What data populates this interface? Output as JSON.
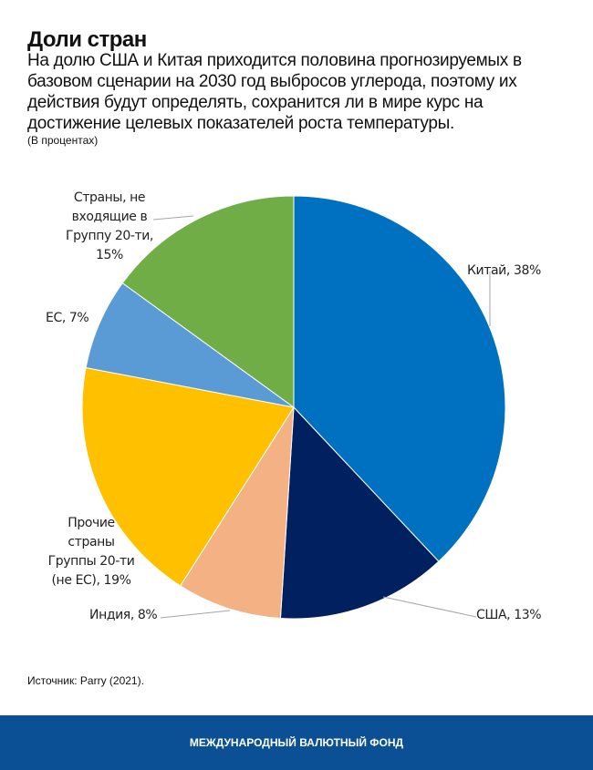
{
  "header": {
    "title": "Доли стран",
    "subtitle": "На долю США и Китая приходится половина прогнозируемых в базовом сценарии на 2030 год выбросов углерода, поэтому их действия будут определять, сохранится ли в мире курс на достижение целевых показателей роста температуры.",
    "unit": "(В процентах)"
  },
  "labels": {
    "china": "Китай, 38%",
    "usa": "США, 13%",
    "india": "Индия, 8%",
    "other_g20_l1": "Прочие",
    "other_g20_l2": "страны",
    "other_g20_l3": "Группы 20-ти",
    "other_g20_l4": "(не ЕС), 19%",
    "eu": "ЕС, 7%",
    "non_g20_l1": "Страны, не",
    "non_g20_l2": "входящие в",
    "non_g20_l3": "Группу 20-ти,",
    "non_g20_l4": "15%"
  },
  "source": "Источник: Parry (2021).",
  "footer": {
    "org": "МЕЖДУНАРОДНЫЙ ВАЛЮТНЫЙ ФОНД"
  },
  "chart_data": {
    "type": "pie",
    "title": "Доли стран",
    "unit": "%",
    "categories": [
      "Китай",
      "США",
      "Индия",
      "Прочие страны Группы 20-ти (не ЕС)",
      "ЕС",
      "Страны, не входящие в Группу 20-ти"
    ],
    "values": [
      38,
      13,
      8,
      19,
      7,
      15
    ],
    "colors": [
      "#0070c0",
      "#002060",
      "#f4b183",
      "#ffc000",
      "#5b9bd5",
      "#70ad47"
    ],
    "start_angle": "12 o'clock, clockwise"
  }
}
